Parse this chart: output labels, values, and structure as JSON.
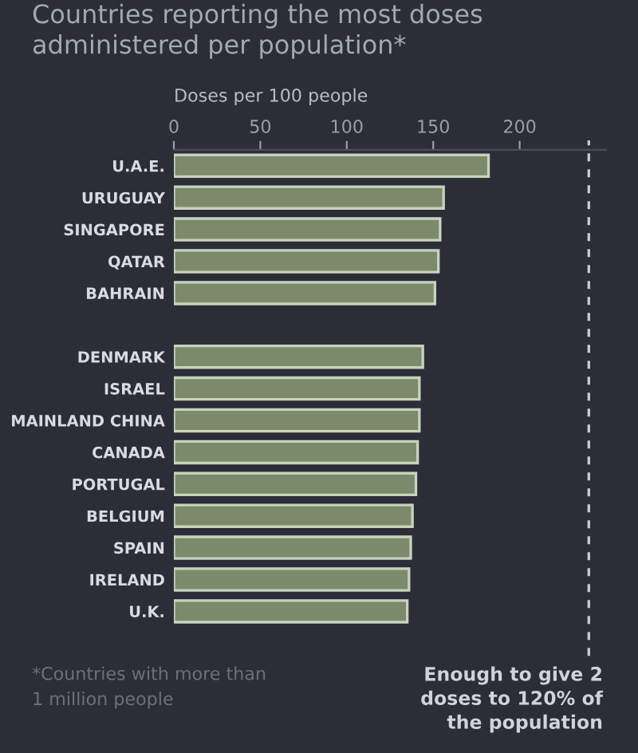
{
  "chart_data": {
    "type": "bar",
    "orientation": "horizontal",
    "title": "Countries reporting the most doses\nadministered per population*",
    "xlabel": "Doses per 100 people",
    "categories": [
      "U.A.E.",
      "URUGUAY",
      "SINGAPORE",
      "QATAR",
      "BAHRAIN",
      null,
      "DENMARK",
      "ISRAEL",
      "MAINLAND CHINA",
      "CANADA",
      "PORTUGAL",
      "BELGIUM",
      "SPAIN",
      "IRELAND",
      "U.K."
    ],
    "values": [
      182,
      156,
      154,
      153,
      151,
      null,
      144,
      142,
      142,
      141,
      140,
      138,
      137,
      136,
      135
    ],
    "color": "#7b8a6b",
    "xlim": [
      0,
      250
    ],
    "xticks": [
      0,
      50,
      100,
      150,
      200
    ],
    "grid": false,
    "legend": false,
    "ref_lines": [
      {
        "axis": "x",
        "value": 240,
        "label": "Enough to give 2\ndoses to 120% of\nthe population",
        "color": "#c8ccd2",
        "line_style": "dashed"
      }
    ],
    "annotations": [
      "*Countries with more than\n1 million people"
    ]
  }
}
